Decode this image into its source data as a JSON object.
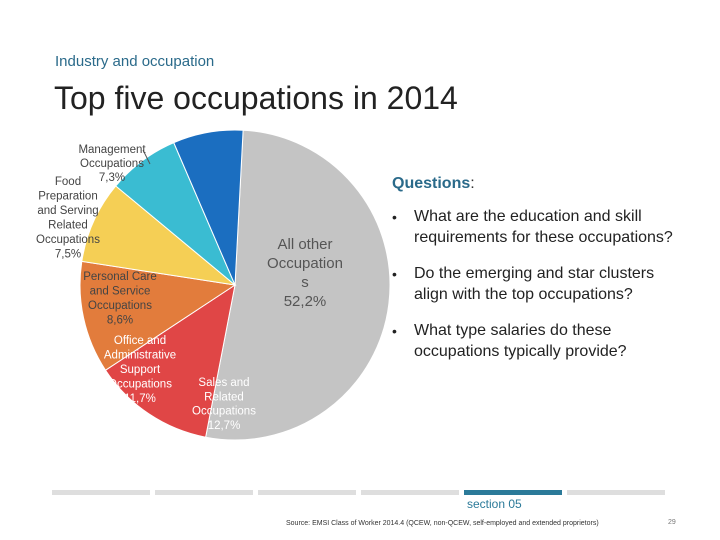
{
  "header": {
    "subtitle": "Industry and occupation",
    "title": "Top five occupations in 2014"
  },
  "chart_data": {
    "type": "pie",
    "title": "",
    "slices": [
      {
        "label": "All other Occupations",
        "value": 52.2,
        "color": "#c4c4c4"
      },
      {
        "label": "Sales and Related Occupations",
        "value": 12.7,
        "color": "#e04646"
      },
      {
        "label": "Office and Administrative Support Occupations",
        "value": 11.7,
        "color": "#e27c3c"
      },
      {
        "label": "Personal Care and Service Occupations",
        "value": 8.6,
        "color": "#f5cf55"
      },
      {
        "label": "Food Preparation and Serving Related Occupations",
        "value": 7.5,
        "color": "#3abcd2"
      },
      {
        "label": "Management Occupations",
        "value": 7.3,
        "color": "#1b6ec0"
      }
    ],
    "labels": {
      "all_other": [
        "All other",
        "Occupation",
        "s",
        "52,2%"
      ],
      "sales": [
        "Sales and",
        "Related",
        "Occupations",
        "12,7%"
      ],
      "office": [
        "Office and",
        "Administrative",
        "Support",
        "Occupations",
        "11,7%"
      ],
      "personal": [
        "Personal Care",
        "and Service",
        "Occupations",
        "8,6%"
      ],
      "food": [
        "Food",
        "Preparation",
        "and Serving",
        "Related",
        "Occupations",
        "7,5%"
      ],
      "management": [
        "Management",
        "Occupations",
        "7,3%"
      ]
    }
  },
  "questions": {
    "heading_highlight": "Questions",
    "heading_rest": ":",
    "items": [
      "What are the education and skill requirements for these occupations?",
      "Do the emerging and star clusters align with the top occupations?",
      "What type salaries do these occupations typically provide?"
    ],
    "bullet": "•"
  },
  "footer": {
    "section": "section 05",
    "source": "Source: EMSI Class of Worker 2014.4 (QCEW, non-QCEW, self-employed and extended proprietors)",
    "page": "29"
  }
}
